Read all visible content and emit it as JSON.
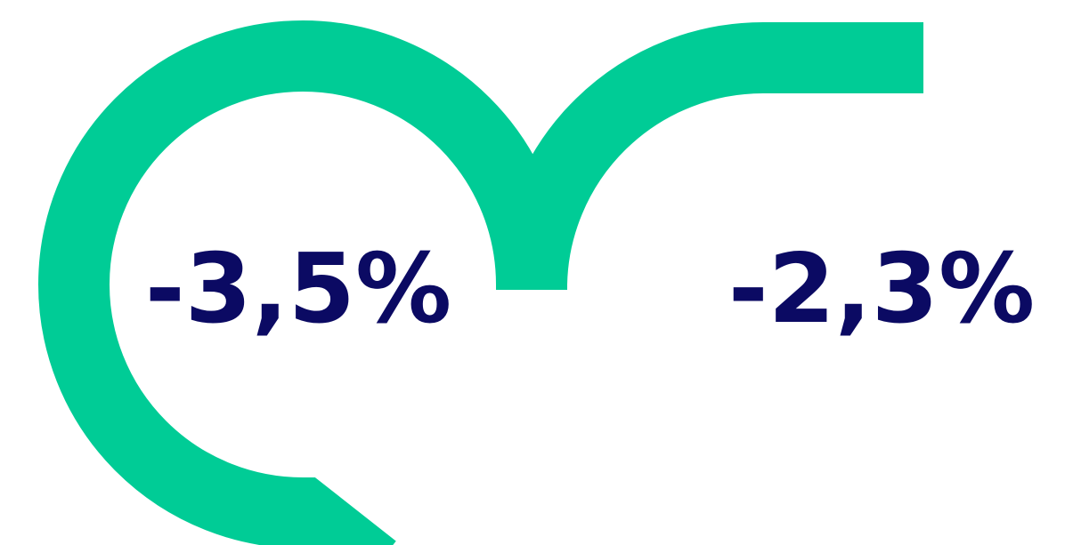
{
  "texts": [
    "-3,5%",
    "-2,3%"
  ]
}
